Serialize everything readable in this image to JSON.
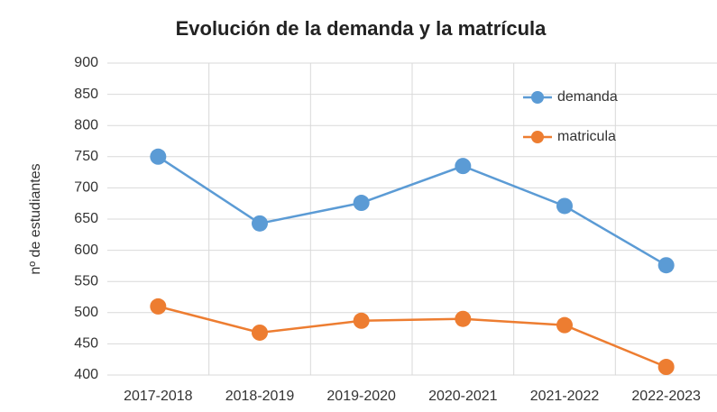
{
  "chart_data": {
    "type": "line",
    "title": "Evolución de la demanda y la matrícula",
    "y_label": "nº de estudiantes",
    "categories": [
      "2017-2018",
      "2018-2019",
      "2019-2020",
      "2020-2021",
      "2021-2022",
      "2022-2023"
    ],
    "series": [
      {
        "name": "demanda",
        "color": "#5b9bd5",
        "values": [
          750,
          643,
          676,
          735,
          671,
          576
        ]
      },
      {
        "name": "matricula",
        "color": "#ed7d31",
        "values": [
          510,
          468,
          487,
          490,
          480,
          413
        ]
      }
    ],
    "ylim": [
      400,
      900
    ],
    "yticks": [
      400,
      450,
      500,
      550,
      600,
      650,
      700,
      750,
      800,
      850,
      900
    ],
    "grid": true,
    "legend": "top-right"
  }
}
